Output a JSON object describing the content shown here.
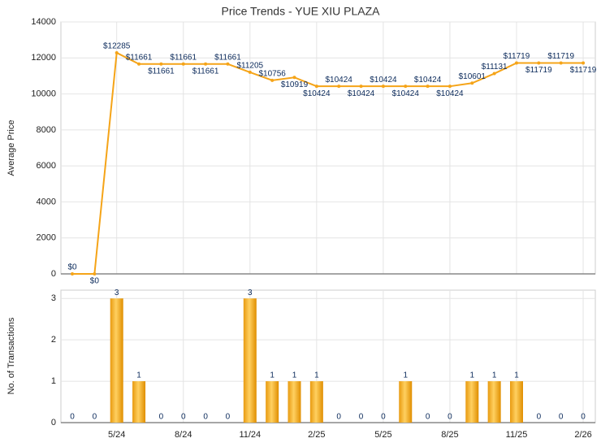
{
  "chart_data": [
    {
      "type": "line",
      "title": "Price Trends - YUE XIU PLAZA",
      "y_label": "Average Price",
      "color": "#f5a418",
      "values": [
        0,
        0,
        12285,
        11661,
        11661,
        11661,
        11661,
        11661,
        11205,
        10756,
        10919,
        10424,
        10424,
        10424,
        10424,
        10424,
        10424,
        10424,
        10601,
        11131,
        11719,
        11719,
        11719,
        11719
      ],
      "value_labels": [
        "$0",
        "$0",
        "$12285",
        "$11661",
        "$11661",
        "$11661",
        "$11661",
        "$11661",
        "$11205",
        "$10756",
        "$10919",
        "$10424",
        "$10424",
        "$10424",
        "$10424",
        "$10424",
        "$10424",
        "$10424",
        "$10601",
        "$11131",
        "$11719",
        "$11719",
        "$11719",
        "$11719"
      ],
      "ylim": [
        0,
        14000
      ],
      "yticks": [
        0,
        2000,
        4000,
        6000,
        8000,
        10000,
        12000,
        14000
      ],
      "grid": true
    },
    {
      "type": "bar",
      "y_label": "No. of Transactions",
      "color": "#f5a418",
      "categories": [
        null,
        null,
        "5/24",
        null,
        null,
        "8/24",
        null,
        null,
        "11/24",
        null,
        null,
        "2/25",
        null,
        null,
        "5/25",
        null,
        null,
        "8/25",
        null,
        null,
        "11/25",
        null,
        null,
        "2/26"
      ],
      "values": [
        0,
        0,
        3,
        1,
        0,
        0,
        0,
        0,
        3,
        1,
        1,
        1,
        0,
        0,
        0,
        1,
        0,
        0,
        1,
        1,
        1,
        0,
        0,
        0
      ],
      "ylim": [
        0,
        3.2
      ],
      "yticks": [
        0,
        1,
        2,
        3
      ],
      "grid": true
    }
  ]
}
